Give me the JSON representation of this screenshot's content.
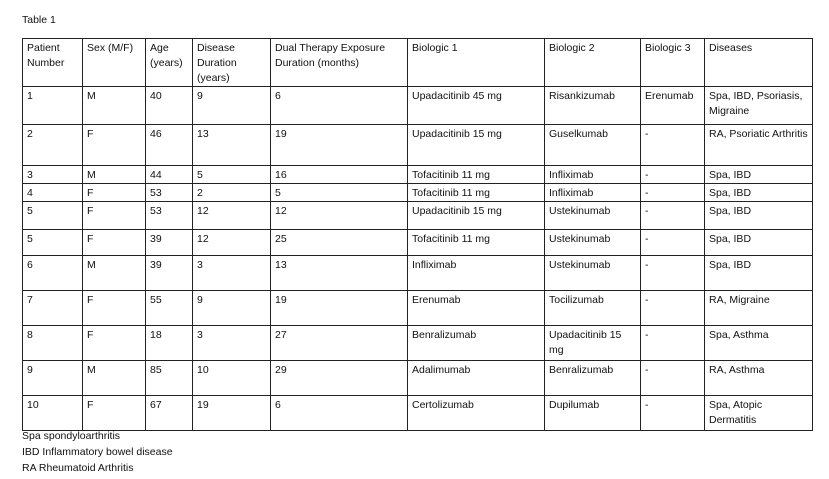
{
  "title": "Table 1",
  "table": {
    "headers": [
      "Patient Number",
      "Sex (M/F)",
      "Age (years)",
      "Disease Duration (years)",
      "Dual Therapy Exposure Duration (months)",
      "Biologic 1",
      "Biologic 2",
      "Biologic 3",
      "Diseases"
    ],
    "rows": [
      [
        "1",
        "M",
        "40",
        "9",
        "6",
        "Upadacitinib 45 mg",
        "Risankizumab",
        "Erenumab",
        "Spa, IBD, Psoriasis, Migraine"
      ],
      [
        "2",
        "F",
        "46",
        "13",
        "19",
        "Upadacitinib 15 mg",
        "Guselkumab",
        "-",
        "RA, Psoriatic Arthritis"
      ],
      [
        "3",
        "M",
        "44",
        "5",
        "16",
        "Tofacitinib 11 mg",
        "Infliximab",
        "-",
        "Spa, IBD"
      ],
      [
        "4",
        "F",
        "53",
        "2",
        "5",
        "Tofacitinib 11 mg",
        "Infliximab",
        "-",
        "Spa, IBD"
      ],
      [
        "5",
        "F",
        "53",
        "12",
        "12",
        "Upadacitinib 15 mg",
        "Ustekinumab",
        "-",
        "Spa, IBD"
      ],
      [
        "5",
        "F",
        "39",
        "12",
        "25",
        "Tofacitinib 11 mg",
        "Ustekinumab",
        "-",
        "Spa, IBD"
      ],
      [
        "6",
        "M",
        "39",
        "3",
        "13",
        "Infliximab",
        "Ustekinumab",
        "-",
        "Spa, IBD"
      ],
      [
        "7",
        "F",
        "55",
        "9",
        "19",
        "Erenumab",
        "Tocilizumab",
        "-",
        "RA, Migraine"
      ],
      [
        "8",
        "F",
        "18",
        "3",
        "27",
        "Benralizumab",
        "Upadacitinib 15 mg",
        "-",
        "Spa, Asthma"
      ],
      [
        "9",
        "M",
        "85",
        "10",
        "29",
        "Adalimumab",
        "Benralizumab",
        "-",
        "RA, Asthma"
      ],
      [
        "10",
        "F",
        "67",
        "19",
        "6",
        "Certolizumab",
        "Dupilumab",
        "-",
        "Spa, Atopic Dermatitis"
      ]
    ]
  },
  "footnotes": [
    "Spa  spondyloarthritis",
    "IBD Inflammatory bowel disease",
    "RA Rheumatoid Arthritis"
  ]
}
